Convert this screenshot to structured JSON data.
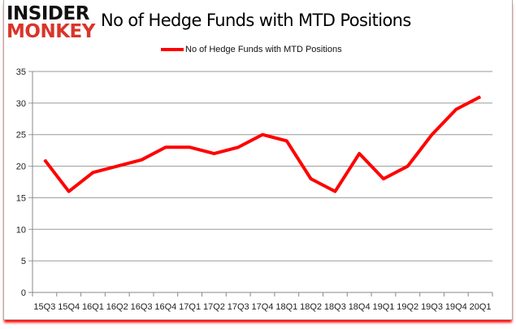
{
  "logo": {
    "line1": "INSIDER",
    "line2": "MONKEY"
  },
  "chart_data": {
    "type": "line",
    "title": "No of Hedge Funds with MTD Positions",
    "xlabel": "",
    "ylabel": "",
    "categories": [
      "15Q3",
      "15Q4",
      "16Q1",
      "16Q2",
      "16Q3",
      "16Q4",
      "17Q1",
      "17Q2",
      "17Q3",
      "17Q4",
      "18Q1",
      "18Q2",
      "18Q3",
      "18Q4",
      "19Q1",
      "19Q2",
      "19Q3",
      "19Q4",
      "20Q1"
    ],
    "series": [
      {
        "name": "No of Hedge Funds with MTD Positions",
        "color": "#ff0000",
        "values": [
          21,
          16,
          19,
          20,
          21,
          23,
          23,
          22,
          23,
          25,
          24,
          18,
          16,
          22,
          18,
          20,
          25,
          29,
          31
        ]
      }
    ],
    "ylim": [
      0,
      35
    ],
    "yticks": [
      0,
      5,
      10,
      15,
      20,
      25,
      30,
      35
    ],
    "grid": true,
    "legend_placement": "top-center"
  }
}
